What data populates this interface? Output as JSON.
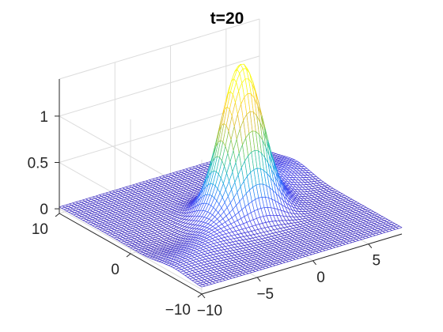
{
  "chart_data": {
    "type": "surface",
    "title": "t=20",
    "xlabel": "",
    "ylabel": "",
    "zlabel": "",
    "grid": true,
    "colormap": [
      "#3e26a8",
      "#4746eb",
      "#3a73fe",
      "#17a6e6",
      "#2cc1a8",
      "#77cb51",
      "#d2bc36",
      "#fcce2e",
      "#f9fb15"
    ],
    "mesh_color_low": "#3e26a8",
    "mesh_color_high": "#f9fb15",
    "x_ticks": [
      -10,
      -5,
      0,
      5
    ],
    "y_ticks": [
      -10,
      0,
      10
    ],
    "z_ticks": [
      0,
      0.5,
      1
    ],
    "xlim": [
      -10,
      8
    ],
    "ylim": [
      -10,
      10
    ],
    "zlim": [
      -0.05,
      1.4
    ],
    "surface": {
      "peak_value": 1.4,
      "peak_at": [
        0,
        0
      ],
      "peak_width": 1.6,
      "ridge_amplitude": 0.22,
      "background_level": 0.02
    }
  }
}
